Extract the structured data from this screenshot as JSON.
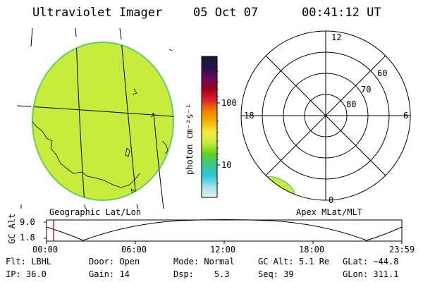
{
  "header": {
    "instrument": "Ultraviolet Imager",
    "date": "05 Oct 07",
    "time": "00:41:12 UT"
  },
  "left_panel": {
    "label": "Geographic Lat/Lon",
    "image_color": "#c8ec3c",
    "outline_color": "#66cc66"
  },
  "colorbar": {
    "label": "photon cm⁻²s⁻¹",
    "ticks": [
      "100",
      "10"
    ],
    "colors": [
      "#1a1a30",
      "#2a1050",
      "#6a0a5a",
      "#a00018",
      "#e0202a",
      "#f08000",
      "#f4b000",
      "#f2ee40",
      "#c8ec3c",
      "#5cd020",
      "#38c890",
      "#2cc8d8",
      "#a0e0e8",
      "#e8f0f4"
    ]
  },
  "right_panel": {
    "label": "Apex MLat/MLT",
    "mlt_labels": {
      "top": "12",
      "left": "18",
      "right": "6",
      "bottom": "0"
    },
    "lat_labels": [
      "60",
      "70",
      "80"
    ],
    "patch_color": "#c8ec3c"
  },
  "altitude_plot": {
    "y_axis_label": "GC Alt",
    "y_ticks": [
      "9.0",
      "1.8"
    ],
    "x_ticks": [
      "00:00",
      "06:00",
      "12:00",
      "18:00",
      "23:59"
    ],
    "marker_time": "00:41",
    "marker_color": "#cc2222"
  },
  "info_rows": [
    [
      {
        "key": "Flt:",
        "value": "LBHL"
      },
      {
        "key": "Door:",
        "value": "Open"
      },
      {
        "key": "Mode:",
        "value": "Normal"
      },
      {
        "key": "GC Alt:",
        "value": "5.1 Re"
      },
      {
        "key": "GLat:",
        "value": "−44.8"
      }
    ],
    [
      {
        "key": "IP:",
        "value": "36.0"
      },
      {
        "key": "Gain:",
        "value": "14"
      },
      {
        "key": "Dsp:",
        "value": "5.3"
      },
      {
        "key": "Seq:",
        "value": "39"
      },
      {
        "key": "GLon:",
        "value": "311.1"
      }
    ]
  ]
}
